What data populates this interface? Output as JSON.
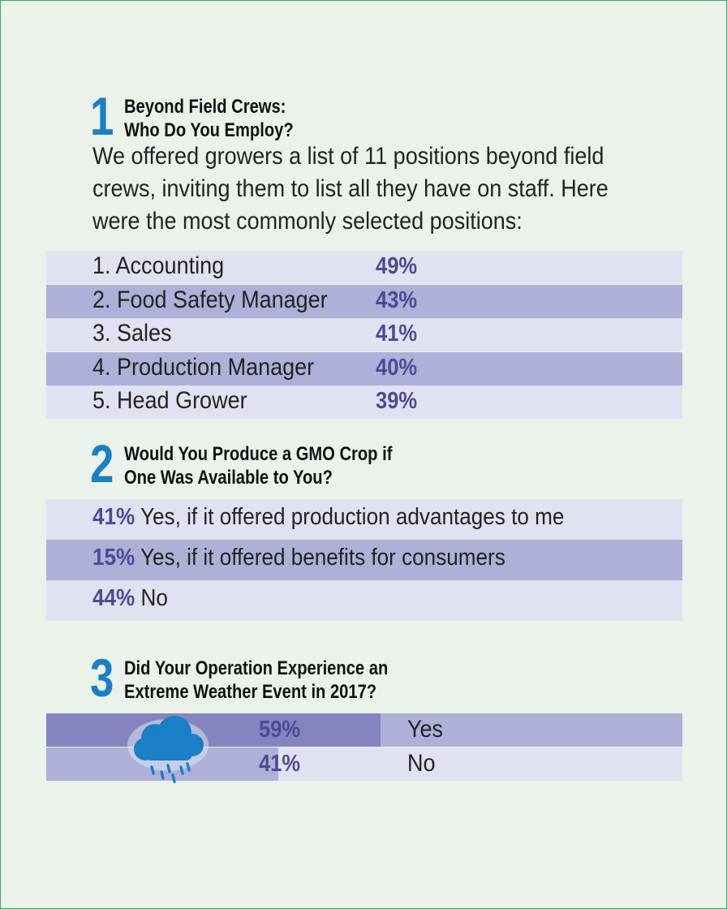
{
  "sections": [
    {
      "number": "1",
      "title_line1": "Beyond Field Crews:",
      "title_line2": "Who Do You Employ?",
      "intro_line1": "We offered growers a list of 11 positions beyond field",
      "intro_line2": "crews, inviting them to list all they have on staff. Here",
      "intro_line3": "were the most commonly selected positions:"
    },
    {
      "number": "2",
      "title_line1": "Would You Produce a GMO Crop if",
      "title_line2": "One Was Available to You?"
    },
    {
      "number": "3",
      "title_line1": "Did Your Operation Experience an",
      "title_line2": "Extreme Weather Event in 2017?"
    }
  ],
  "chart_data": [
    {
      "type": "table",
      "categories": [
        "1. Accounting",
        "2. Food Safety Manager",
        "3. Sales",
        "4. Production Manager",
        "5. Head Grower"
      ],
      "values": [
        49,
        43,
        41,
        40,
        39
      ],
      "value_labels": [
        "49%",
        "43%",
        "41%",
        "40%",
        "39%"
      ]
    },
    {
      "type": "table",
      "categories": [
        "Yes, if it offered production advantages to me",
        "Yes, if it offered benefits for consumers",
        "No"
      ],
      "values": [
        41,
        15,
        44
      ],
      "value_labels": [
        "41%",
        "15%",
        "44%"
      ]
    },
    {
      "type": "bar",
      "categories": [
        "Yes",
        "No"
      ],
      "values": [
        59,
        41
      ],
      "value_labels": [
        "59%",
        "41%"
      ],
      "colors": {
        "yes_bar": "#8584c0",
        "no_bar": "#aeb0d8",
        "bg_yes": "#aeb0d8",
        "bg_no": "#e1e2f1"
      }
    }
  ],
  "icons": {
    "weather": "rain-cloud-icon"
  },
  "colors": {
    "number": "#1a7fc4",
    "percent": "#4c4a96",
    "row_light": "#e1e2f1",
    "row_dark": "#aeb0d8",
    "background": "#eaf2ea",
    "border": "#39a86a"
  }
}
